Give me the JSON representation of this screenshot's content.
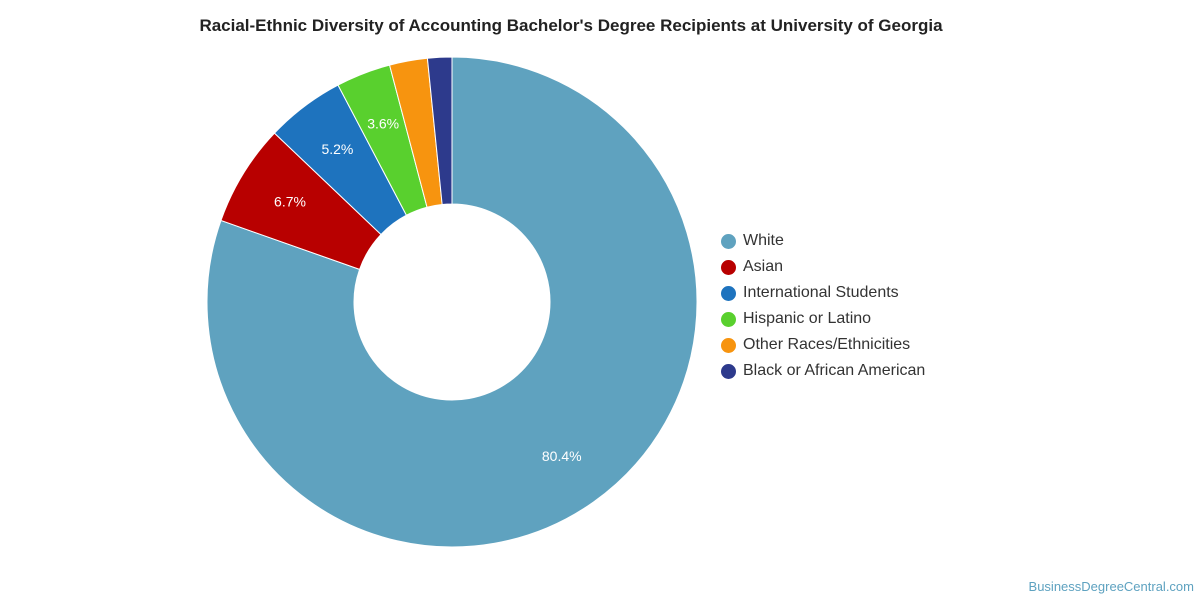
{
  "chart_data": {
    "type": "pie",
    "title": "Racial-Ethnic Diversity of Accounting Bachelor's Degree Recipients at University of Georgia",
    "legend_position": "right",
    "slices": [
      {
        "name": "White",
        "value": 80.4,
        "label": "80.4%",
        "color": "#5fa2bf"
      },
      {
        "name": "Asian",
        "value": 6.7,
        "label": "6.7%",
        "color": "#b80000"
      },
      {
        "name": "International Students",
        "value": 5.2,
        "label": "5.2%",
        "color": "#1e73be"
      },
      {
        "name": "Hispanic or Latino",
        "value": 3.6,
        "label": "3.6%",
        "color": "#59d02e"
      },
      {
        "name": "Other Races/Ethnicities",
        "value": 2.5,
        "label": "",
        "color": "#f7940f"
      },
      {
        "name": "Black or African American",
        "value": 1.6,
        "label": "",
        "color": "#2d3a8c"
      }
    ]
  },
  "credit": "BusinessDegreeCentral.com"
}
